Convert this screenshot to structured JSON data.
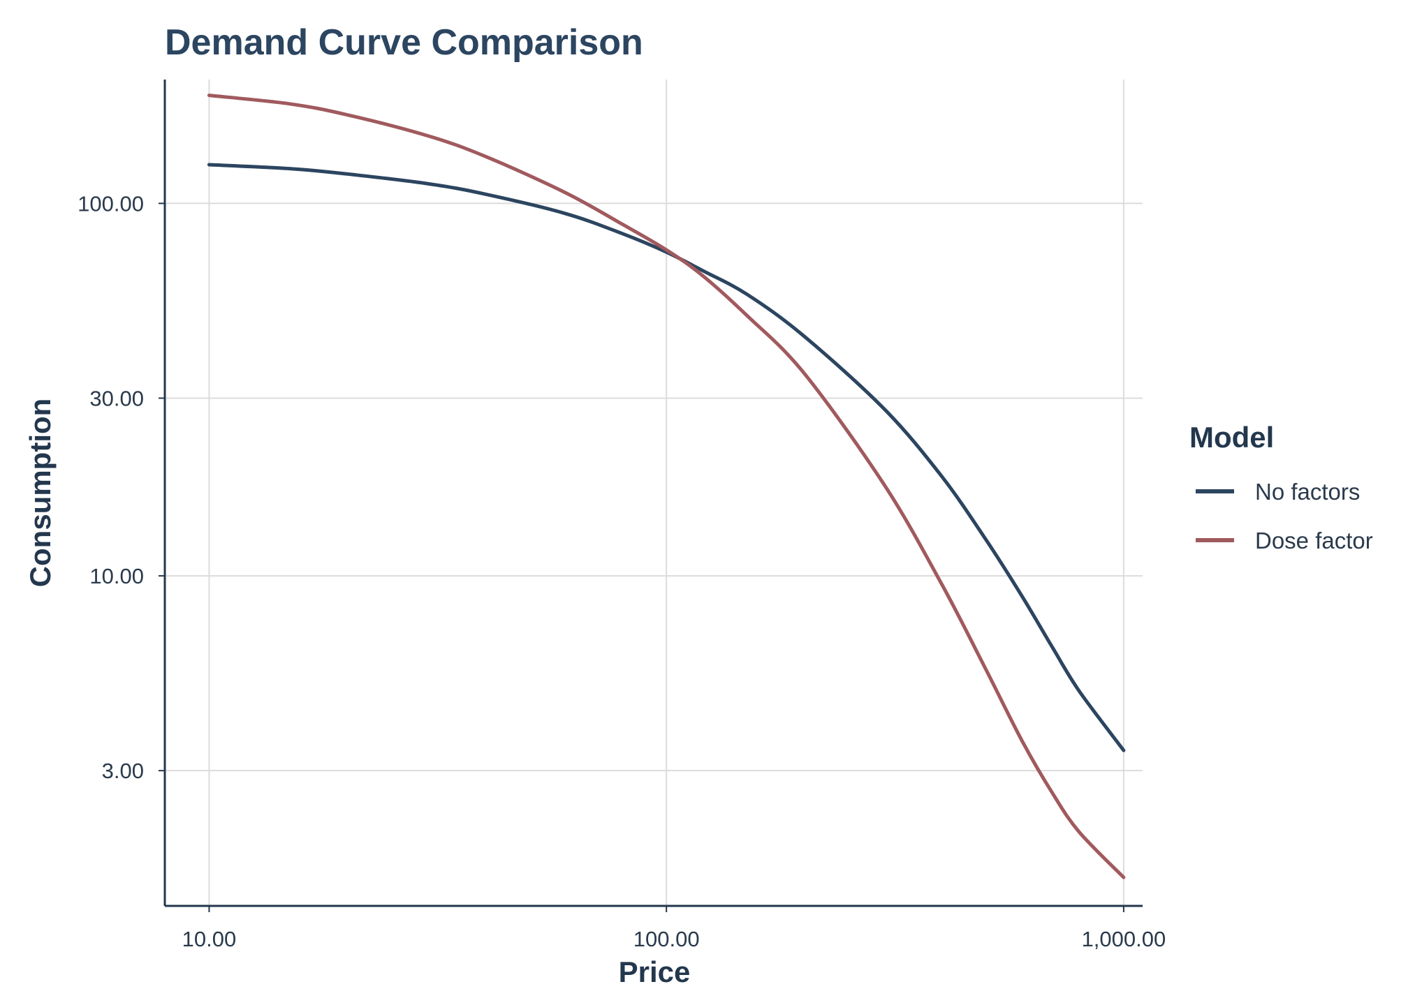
{
  "chart_data": {
    "type": "line",
    "title": "Demand Curve Comparison",
    "xlabel": "Price",
    "ylabel": "Consumption",
    "x_scale": "log10",
    "y_scale": "log10",
    "xlim": [
      8.0,
      1100
    ],
    "ylim": [
      1.3,
      215
    ],
    "x_ticks": [
      {
        "value": 10,
        "label": "10.00"
      },
      {
        "value": 100,
        "label": "100.00"
      },
      {
        "value": 1000,
        "label": "1,000.00"
      }
    ],
    "y_ticks": [
      {
        "value": 3,
        "label": "3.00"
      },
      {
        "value": 10,
        "label": "10.00"
      },
      {
        "value": 30,
        "label": "30.00"
      },
      {
        "value": 100,
        "label": "100.00"
      }
    ],
    "grid": true,
    "legend": {
      "title": "Model",
      "position": "right"
    },
    "series": [
      {
        "name": "No factors",
        "color": "#2c4560",
        "x": [
          10,
          15,
          20,
          30,
          40,
          60,
          80,
          100,
          120,
          150,
          200,
          300,
          400,
          500,
          600,
          700,
          800,
          1000
        ],
        "y": [
          127,
          124,
          120,
          113,
          106,
          94,
          83,
          74,
          66,
          57,
          44,
          28,
          18.5,
          12.5,
          8.8,
          6.4,
          4.9,
          3.4
        ]
      },
      {
        "name": "Dose factor",
        "color": "#a05a5e",
        "x": [
          10,
          15,
          20,
          30,
          40,
          60,
          80,
          100,
          120,
          150,
          200,
          300,
          400,
          500,
          600,
          700,
          800,
          1000
        ],
        "y": [
          195,
          185,
          173,
          152,
          134,
          107,
          88,
          75,
          64,
          50,
          35,
          17.5,
          9.5,
          5.6,
          3.6,
          2.6,
          2.05,
          1.55
        ]
      }
    ]
  }
}
